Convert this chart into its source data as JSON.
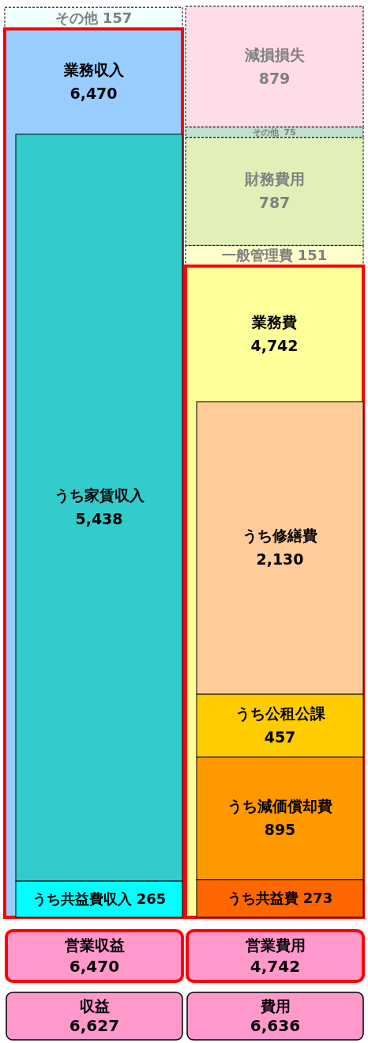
{
  "chart_data": [
    {
      "type": "bar",
      "stacked": true,
      "categories": [
        null,
        null
      ],
      "series": [
        {
          "name": "業務収入",
          "color": "#99ccff",
          "values": [
            6470,
            null
          ],
          "value_labels": [
            "6,470",
            null
          ]
        },
        {
          "name": "その他",
          "color": "#f0ffff",
          "values": [
            157,
            null
          ],
          "value_labels": [
            "157",
            null
          ]
        },
        {
          "name": "業務費",
          "color": "#ffff99",
          "values": [
            null,
            4742
          ],
          "value_labels": [
            null,
            "4,742"
          ]
        },
        {
          "name": "一般管理費",
          "color": "#ffffcc",
          "values": [
            null,
            151
          ],
          "value_labels": [
            null,
            "151"
          ]
        },
        {
          "name": "財務費用",
          "color": "#e0f0b8",
          "values": [
            null,
            787
          ],
          "value_labels": [
            null,
            "787"
          ]
        },
        {
          "name": "その他",
          "color": "#c0e0d0",
          "values": [
            null,
            75
          ],
          "value_labels": [
            null,
            "75"
          ]
        },
        {
          "name": "減損損失",
          "color": "#ffdde8",
          "values": [
            null,
            879
          ],
          "value_labels": [
            null,
            "879"
          ]
        }
      ],
      "annotations": [
        "営業収益 6,470",
        "営業費用 4,742",
        "収益 6,627",
        "費用 6,636"
      ]
    },
    {
      "type": "bar",
      "stacked": true,
      "categories": [
        null,
        null
      ],
      "series": [
        {
          "name": "うち共益費収入",
          "color": "#00ffff",
          "values": [
            265,
            null
          ],
          "value_labels": [
            "265",
            null
          ]
        },
        {
          "name": "うち家賃収入",
          "color": "#33cccc",
          "values": [
            5438,
            null
          ],
          "value_labels": [
            "5,438",
            null
          ]
        },
        {
          "name": "うち共益費",
          "color": "#ff6600",
          "values": [
            null,
            273
          ],
          "value_labels": [
            null,
            "273"
          ]
        },
        {
          "name": "うち減価償却費",
          "color": "#ff9900",
          "values": [
            null,
            895
          ],
          "value_labels": [
            null,
            "895"
          ]
        },
        {
          "name": "うち公租公課",
          "color": "#ffcc00",
          "values": [
            null,
            457
          ],
          "value_labels": [
            null,
            "457"
          ]
        },
        {
          "name": "うち修繕費",
          "color": "#ffcc99",
          "values": [
            null,
            2130
          ],
          "value_labels": [
            null,
            "2,130"
          ]
        }
      ]
    }
  ]
}
